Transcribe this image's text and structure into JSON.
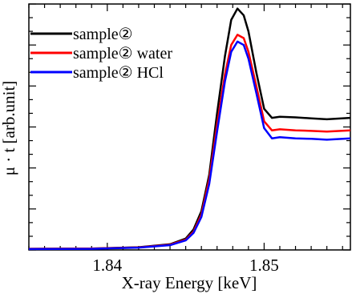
{
  "chart_data": {
    "type": "line",
    "xlabel": "X-ray Energy [keV]",
    "ylabel": "μ · t [arb.unit]",
    "xlim": [
      1.835,
      1.8555
    ],
    "ylim": [
      0,
      1.08
    ],
    "x_ticks": [
      1.84,
      1.85
    ],
    "x_tick_labels": [
      "1.84",
      "1.85"
    ],
    "y_tick_labels_shown": false,
    "grid": false,
    "legend_position": "top-left",
    "series": [
      {
        "name": "sample②",
        "color": "#000000",
        "points": [
          [
            1.835,
            0.005
          ],
          [
            1.839,
            0.006
          ],
          [
            1.842,
            0.012
          ],
          [
            1.844,
            0.025
          ],
          [
            1.845,
            0.05
          ],
          [
            1.8455,
            0.09
          ],
          [
            1.846,
            0.17
          ],
          [
            1.8465,
            0.33
          ],
          [
            1.847,
            0.6
          ],
          [
            1.8475,
            0.85
          ],
          [
            1.8479,
            1.01
          ],
          [
            1.8483,
            1.06
          ],
          [
            1.8487,
            1.03
          ],
          [
            1.849,
            0.96
          ],
          [
            1.8495,
            0.78
          ],
          [
            1.85,
            0.62
          ],
          [
            1.8505,
            0.58
          ],
          [
            1.851,
            0.585
          ],
          [
            1.852,
            0.582
          ],
          [
            1.853,
            0.578
          ],
          [
            1.854,
            0.574
          ],
          [
            1.8555,
            0.58
          ]
        ]
      },
      {
        "name": "sample② water",
        "color": "#ff0000",
        "points": [
          [
            1.835,
            0.005
          ],
          [
            1.839,
            0.006
          ],
          [
            1.842,
            0.011
          ],
          [
            1.844,
            0.023
          ],
          [
            1.845,
            0.045
          ],
          [
            1.8455,
            0.08
          ],
          [
            1.846,
            0.155
          ],
          [
            1.8465,
            0.31
          ],
          [
            1.847,
            0.55
          ],
          [
            1.8475,
            0.77
          ],
          [
            1.8479,
            0.9
          ],
          [
            1.8483,
            0.945
          ],
          [
            1.8487,
            0.93
          ],
          [
            1.849,
            0.87
          ],
          [
            1.8495,
            0.72
          ],
          [
            1.85,
            0.565
          ],
          [
            1.8505,
            0.525
          ],
          [
            1.851,
            0.53
          ],
          [
            1.852,
            0.525
          ],
          [
            1.853,
            0.523
          ],
          [
            1.854,
            0.52
          ],
          [
            1.8555,
            0.525
          ]
        ]
      },
      {
        "name": "sample② HCl",
        "color": "#0000ff",
        "points": [
          [
            1.835,
            0.004
          ],
          [
            1.839,
            0.005
          ],
          [
            1.842,
            0.01
          ],
          [
            1.844,
            0.021
          ],
          [
            1.845,
            0.042
          ],
          [
            1.8455,
            0.075
          ],
          [
            1.846,
            0.145
          ],
          [
            1.8465,
            0.29
          ],
          [
            1.847,
            0.52
          ],
          [
            1.8475,
            0.74
          ],
          [
            1.8479,
            0.87
          ],
          [
            1.8483,
            0.915
          ],
          [
            1.8487,
            0.9
          ],
          [
            1.849,
            0.84
          ],
          [
            1.8495,
            0.69
          ],
          [
            1.85,
            0.535
          ],
          [
            1.8505,
            0.49
          ],
          [
            1.851,
            0.495
          ],
          [
            1.852,
            0.49
          ],
          [
            1.853,
            0.488
          ],
          [
            1.854,
            0.484
          ],
          [
            1.8555,
            0.49
          ]
        ]
      }
    ]
  }
}
